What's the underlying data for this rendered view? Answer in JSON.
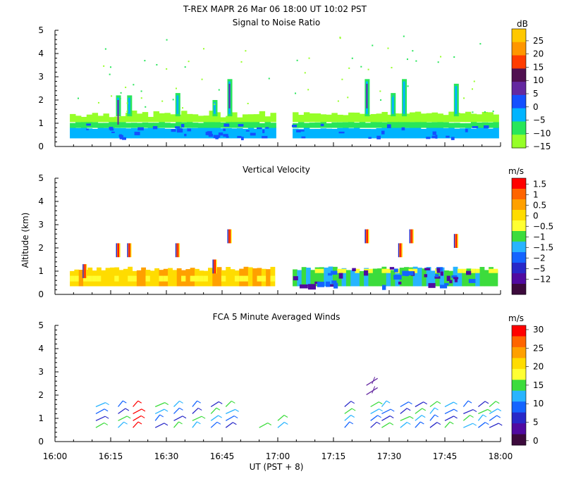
{
  "header": {
    "title": "T-REX  MAPR 26 Mar 06  18:00 UT  10:02  PST"
  },
  "axes": {
    "ylabel": "Altitude (km)",
    "xlabel": "UT  (PST + 8)",
    "x_ticks": [
      "16:00",
      "16:15",
      "16:30",
      "16:45",
      "17:00",
      "17:15",
      "17:30",
      "17:45",
      "18:00"
    ],
    "y_ticks": [
      "0",
      "1",
      "2",
      "3",
      "4",
      "5"
    ]
  },
  "chart_data": [
    {
      "type": "heatmap",
      "title": "Signal to Noise Ratio",
      "xlabel": "UT  (PST + 8)",
      "ylabel": "Altitude (km)",
      "xlim": [
        "16:00",
        "18:00"
      ],
      "ylim": [
        0,
        5
      ],
      "colorbar": {
        "unit": "dB",
        "labels": [
          "25",
          "20",
          "15",
          "10",
          "5",
          "0",
          "−5",
          "−10",
          "−15"
        ],
        "colors": [
          "#ffc800",
          "#ff9600",
          "#ff3c00",
          "#501050",
          "#6428a0",
          "#1450ff",
          "#00b4ff",
          "#28e65a",
          "#96ff28"
        ]
      }
    },
    {
      "type": "heatmap",
      "title": "Vertical Velocity",
      "xlabel": "UT  (PST + 8)",
      "ylabel": "Altitude (km)",
      "xlim": [
        "16:00",
        "18:00"
      ],
      "ylim": [
        0,
        5
      ],
      "colorbar": {
        "unit": "m/s",
        "labels": [
          "1.5",
          "1",
          "0.5",
          "0",
          "−0.5",
          "−1",
          "−1.5",
          "−2",
          "−5",
          "−12"
        ],
        "colors": [
          "#ff0000",
          "#ff6400",
          "#ffa000",
          "#ffdc00",
          "#ffff32",
          "#3cdc3c",
          "#28b4ff",
          "#1464ff",
          "#2828c8",
          "#500aa0",
          "#3c0a3c"
        ]
      }
    },
    {
      "type": "scatter",
      "title": "FCA 5 Minute Averaged Winds",
      "xlabel": "UT  (PST + 8)",
      "ylabel": "Altitude (km)",
      "xlim": [
        "16:00",
        "18:00"
      ],
      "ylim": [
        0,
        5
      ],
      "colorbar": {
        "unit": "m/s",
        "labels": [
          "30",
          "25",
          "20",
          "15",
          "10",
          "5",
          "0"
        ],
        "colors": [
          "#ff0000",
          "#ff6400",
          "#ffa000",
          "#ffdc00",
          "#ffff32",
          "#3cdc3c",
          "#28b4ff",
          "#1464ff",
          "#2828c8",
          "#500aa0",
          "#3c0a3c"
        ]
      }
    }
  ]
}
